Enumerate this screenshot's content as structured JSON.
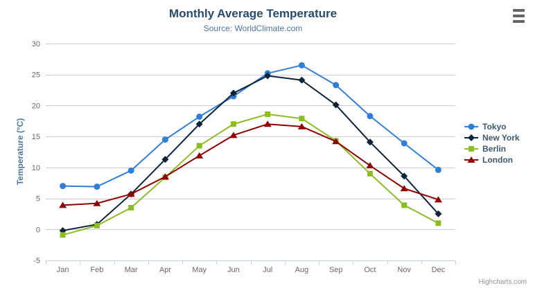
{
  "chart_data": {
    "type": "line",
    "title": "Monthly Average Temperature",
    "subtitle": "Source: WorldClimate.com",
    "categories": [
      "Jan",
      "Feb",
      "Mar",
      "Apr",
      "May",
      "Jun",
      "Jul",
      "Aug",
      "Sep",
      "Oct",
      "Nov",
      "Dec"
    ],
    "xlabel": "",
    "ylabel": "Temperature (°C)",
    "ylim": [
      -5,
      30
    ],
    "ytick_interval": 5,
    "ytick_labels": [
      "-5",
      "0",
      "5",
      "10",
      "15",
      "20",
      "25",
      "30"
    ],
    "grid": "horizontal",
    "legend_position": "right",
    "series": [
      {
        "name": "Tokyo",
        "color": "#2f7ed8",
        "marker": "circle",
        "values": [
          7.0,
          6.9,
          9.5,
          14.5,
          18.2,
          21.5,
          25.2,
          26.5,
          23.3,
          18.3,
          13.9,
          9.6
        ]
      },
      {
        "name": "New York",
        "color": "#0d233a",
        "marker": "diamond",
        "values": [
          -0.2,
          0.8,
          5.7,
          11.3,
          17.0,
          22.0,
          24.8,
          24.1,
          20.1,
          14.1,
          8.6,
          2.5
        ]
      },
      {
        "name": "Berlin",
        "color": "#8bbc21",
        "marker": "square",
        "values": [
          -0.9,
          0.6,
          3.5,
          8.4,
          13.5,
          17.0,
          18.6,
          17.9,
          14.3,
          9.0,
          3.9,
          1.0
        ]
      },
      {
        "name": "London",
        "color": "#910000",
        "marker": "triangle",
        "values": [
          3.9,
          4.2,
          5.7,
          8.5,
          11.9,
          15.2,
          17.0,
          16.6,
          14.2,
          10.3,
          6.6,
          4.8
        ]
      }
    ]
  },
  "credits": {
    "label": "Highcharts.com"
  },
  "menu": {
    "icon": "hamburger-menu-icon"
  },
  "colors": {
    "title": "#274b6d",
    "subtitle": "#4d759e",
    "axis_label": "#666666",
    "y_axis_title": "#4d759e",
    "gridline": "#cdcdcd",
    "axis_line": "#c0d0e0",
    "legend_text": "#3e576f",
    "credits": "#909090",
    "background": "#ffffff"
  }
}
